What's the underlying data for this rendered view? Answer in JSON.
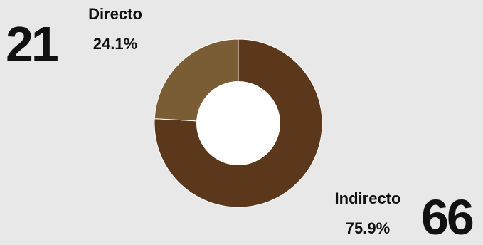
{
  "chart_data": {
    "type": "donut",
    "title": "",
    "segments": [
      {
        "name": "Directo",
        "count": "21",
        "percent": "24.1%",
        "value": 21,
        "color": "#7a5c35"
      },
      {
        "name": "Indirecto",
        "count": "66",
        "percent": "75.9%",
        "value": 66,
        "color": "#5b381b"
      }
    ],
    "center_color": "#ffffff",
    "separator_color": "#ffffff"
  }
}
